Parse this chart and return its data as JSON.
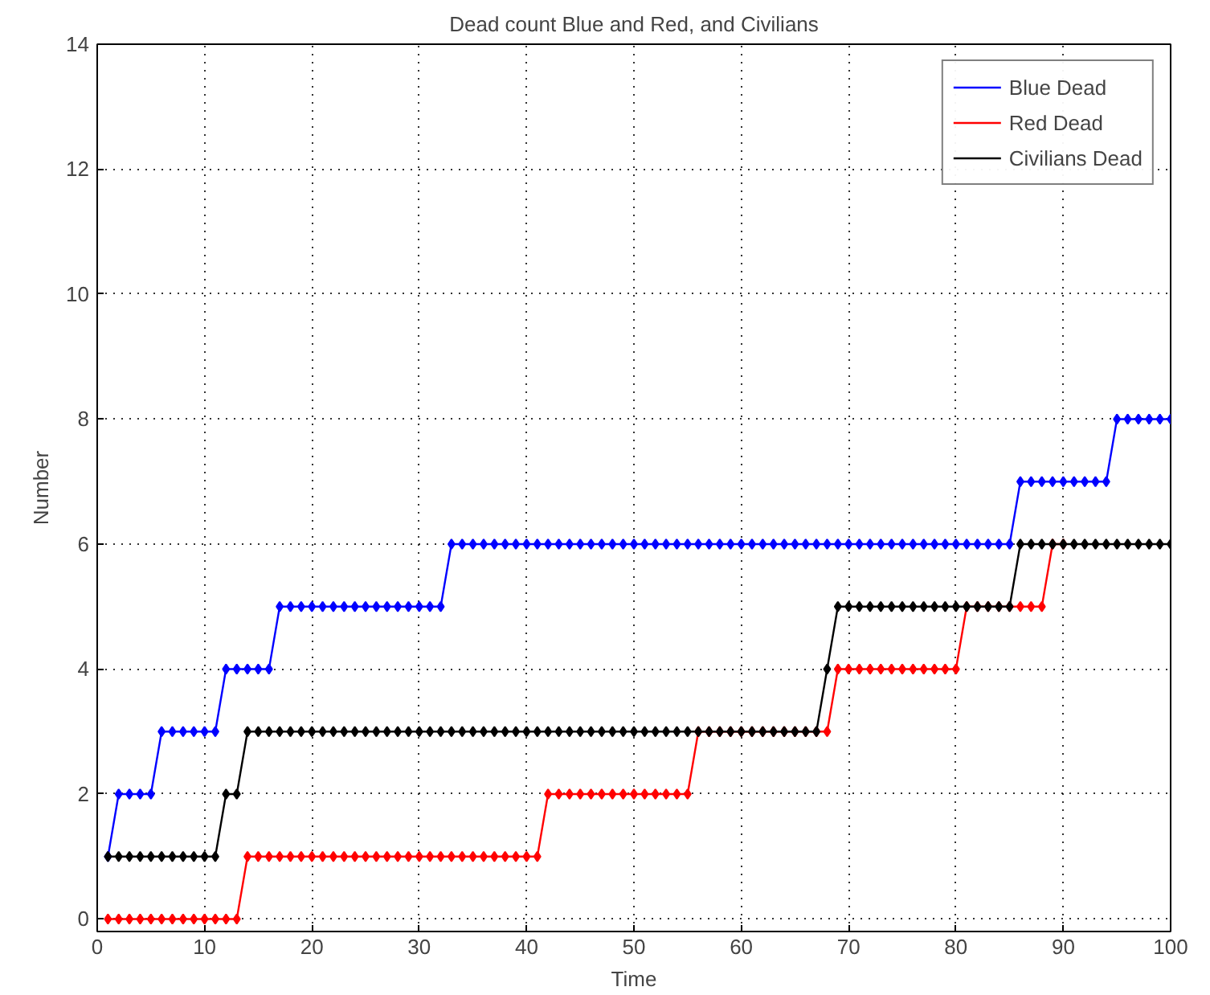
{
  "chart_data": {
    "type": "line",
    "title": "Dead count Blue and Red, and Civilians",
    "xlabel": "Time",
    "ylabel": "Number",
    "x": [
      1,
      2,
      3,
      4,
      5,
      6,
      7,
      8,
      9,
      10,
      11,
      12,
      13,
      14,
      15,
      16,
      17,
      18,
      19,
      20,
      21,
      22,
      23,
      24,
      25,
      26,
      27,
      28,
      29,
      30,
      31,
      32,
      33,
      34,
      35,
      36,
      37,
      38,
      39,
      40,
      41,
      42,
      43,
      44,
      45,
      46,
      47,
      48,
      49,
      50,
      51,
      52,
      53,
      54,
      55,
      56,
      57,
      58,
      59,
      60,
      61,
      62,
      63,
      64,
      65,
      66,
      67,
      68,
      69,
      70,
      71,
      72,
      73,
      74,
      75,
      76,
      77,
      78,
      79,
      80,
      81,
      82,
      83,
      84,
      85,
      86,
      87,
      88,
      89,
      90,
      91,
      92,
      93,
      94,
      95,
      96,
      97,
      98,
      99,
      100
    ],
    "series": [
      {
        "name": "Blue Dead",
        "color": "#0000ff",
        "values": [
          1,
          2,
          2,
          2,
          2,
          3,
          3,
          3,
          3,
          3,
          3,
          4,
          4,
          4,
          4,
          4,
          5,
          5,
          5,
          5,
          5,
          5,
          5,
          5,
          5,
          5,
          5,
          5,
          5,
          5,
          5,
          5,
          6,
          6,
          6,
          6,
          6,
          6,
          6,
          6,
          6,
          6,
          6,
          6,
          6,
          6,
          6,
          6,
          6,
          6,
          6,
          6,
          6,
          6,
          6,
          6,
          6,
          6,
          6,
          6,
          6,
          6,
          6,
          6,
          6,
          6,
          6,
          6,
          6,
          6,
          6,
          6,
          6,
          6,
          6,
          6,
          6,
          6,
          6,
          6,
          6,
          6,
          6,
          6,
          6,
          7,
          7,
          7,
          7,
          7,
          7,
          7,
          7,
          7,
          8,
          8,
          8,
          8,
          8,
          8
        ]
      },
      {
        "name": "Red Dead",
        "color": "#ff0000",
        "values": [
          0,
          0,
          0,
          0,
          0,
          0,
          0,
          0,
          0,
          0,
          0,
          0,
          0,
          1,
          1,
          1,
          1,
          1,
          1,
          1,
          1,
          1,
          1,
          1,
          1,
          1,
          1,
          1,
          1,
          1,
          1,
          1,
          1,
          1,
          1,
          1,
          1,
          1,
          1,
          1,
          1,
          2,
          2,
          2,
          2,
          2,
          2,
          2,
          2,
          2,
          2,
          2,
          2,
          2,
          2,
          3,
          3,
          3,
          3,
          3,
          3,
          3,
          3,
          3,
          3,
          3,
          3,
          3,
          4,
          4,
          4,
          4,
          4,
          4,
          4,
          4,
          4,
          4,
          4,
          4,
          5,
          5,
          5,
          5,
          5,
          5,
          5,
          5,
          6,
          6,
          null,
          null,
          null,
          null,
          null,
          null,
          null,
          null,
          null,
          null
        ]
      },
      {
        "name": "Civilians Dead",
        "color": "#000000",
        "values": [
          1,
          1,
          1,
          1,
          1,
          1,
          1,
          1,
          1,
          1,
          1,
          2,
          2,
          3,
          3,
          3,
          3,
          3,
          3,
          3,
          3,
          3,
          3,
          3,
          3,
          3,
          3,
          3,
          3,
          3,
          3,
          3,
          3,
          3,
          3,
          3,
          3,
          3,
          3,
          3,
          3,
          3,
          3,
          3,
          3,
          3,
          3,
          3,
          3,
          3,
          3,
          3,
          3,
          3,
          3,
          3,
          3,
          3,
          3,
          3,
          3,
          3,
          3,
          3,
          3,
          3,
          3,
          4,
          5,
          5,
          5,
          5,
          5,
          5,
          5,
          5,
          5,
          5,
          5,
          5,
          5,
          5,
          5,
          5,
          5,
          6,
          6,
          6,
          6,
          6,
          6,
          6,
          6,
          6,
          6,
          6,
          6,
          6,
          6,
          6
        ]
      }
    ],
    "xlim": [
      0,
      100
    ],
    "ylim": [
      -0.2,
      14
    ],
    "xticks": [
      0,
      10,
      20,
      30,
      40,
      50,
      60,
      70,
      80,
      90,
      100
    ],
    "yticks": [
      0,
      2,
      4,
      6,
      8,
      10,
      12,
      14
    ],
    "grid": true,
    "legend": "top right",
    "marker": "diamond",
    "line_style": "solid"
  }
}
